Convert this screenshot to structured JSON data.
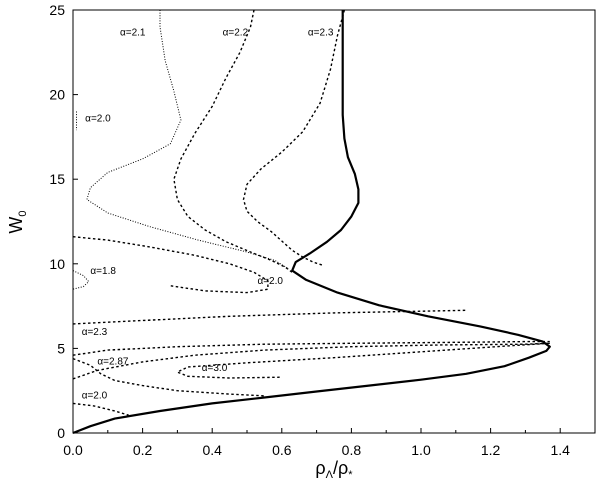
{
  "chart_data": {
    "type": "line",
    "title": "",
    "xlabel": "ρΛ/ρ*",
    "xlabel_parts": {
      "base1": "ρ",
      "sub1": "Λ",
      "slash": "/",
      "base2": "ρ",
      "sub2": "*"
    },
    "ylabel": "W0",
    "ylabel_parts": {
      "base": "W",
      "sub": "0"
    },
    "xlim": [
      0.0,
      1.5
    ],
    "ylim": [
      0,
      25
    ],
    "xticks": [
      0.0,
      0.2,
      0.4,
      0.6,
      0.8,
      1.0,
      1.2,
      1.4
    ],
    "xtick_labels": [
      "0.0",
      "0.2",
      "0.4",
      "0.6",
      "0.8",
      "1.0",
      "1.2",
      "1.4"
    ],
    "yticks": [
      0,
      5,
      10,
      15,
      20,
      25
    ],
    "ytick_labels": [
      "0",
      "5",
      "10",
      "15",
      "20",
      "25"
    ],
    "grid": false,
    "series": [
      {
        "style": "solid",
        "points": [
          [
            0.0,
            0.0
          ],
          [
            0.05,
            0.4
          ],
          [
            0.12,
            0.85
          ],
          [
            0.25,
            1.3
          ],
          [
            0.4,
            1.75
          ],
          [
            0.55,
            2.1
          ],
          [
            0.7,
            2.45
          ],
          [
            0.85,
            2.8
          ],
          [
            1.0,
            3.15
          ],
          [
            1.13,
            3.5
          ],
          [
            1.24,
            3.95
          ],
          [
            1.31,
            4.45
          ],
          [
            1.36,
            4.85
          ],
          [
            1.37,
            5.1
          ],
          [
            1.35,
            5.4
          ],
          [
            1.28,
            5.8
          ],
          [
            1.17,
            6.3
          ],
          [
            1.02,
            6.9
          ],
          [
            0.88,
            7.55
          ],
          [
            0.76,
            8.3
          ],
          [
            0.67,
            9.05
          ],
          [
            0.63,
            9.6
          ],
          [
            0.64,
            10.1
          ],
          [
            0.68,
            10.6
          ],
          [
            0.73,
            11.3
          ],
          [
            0.77,
            12.0
          ],
          [
            0.8,
            12.8
          ],
          [
            0.82,
            13.6
          ],
          [
            0.82,
            14.4
          ],
          [
            0.81,
            15.3
          ],
          [
            0.79,
            16.3
          ],
          [
            0.78,
            17.4
          ],
          [
            0.775,
            18.8
          ],
          [
            0.775,
            20.5
          ],
          [
            0.775,
            22.5
          ],
          [
            0.775,
            25.0
          ]
        ]
      },
      {
        "style": "dash",
        "points": [
          [
            0.78,
            25.0
          ],
          [
            0.76,
            23.5
          ],
          [
            0.74,
            21.5
          ],
          [
            0.71,
            19.5
          ],
          [
            0.66,
            17.8
          ],
          [
            0.6,
            16.6
          ],
          [
            0.54,
            15.6
          ],
          [
            0.5,
            14.7
          ],
          [
            0.49,
            13.8
          ],
          [
            0.5,
            13.1
          ],
          [
            0.53,
            12.5
          ],
          [
            0.57,
            11.9
          ],
          [
            0.6,
            11.35
          ],
          [
            0.63,
            10.8
          ],
          [
            0.66,
            10.4
          ],
          [
            0.69,
            10.1
          ],
          [
            0.72,
            9.9
          ]
        ]
      },
      {
        "style": "dash",
        "points": [
          [
            0.52,
            25.0
          ],
          [
            0.51,
            24.0
          ],
          [
            0.48,
            22.5
          ],
          [
            0.44,
            21.0
          ],
          [
            0.4,
            19.3
          ],
          [
            0.35,
            17.7
          ],
          [
            0.31,
            16.2
          ],
          [
            0.29,
            15.0
          ],
          [
            0.3,
            13.8
          ],
          [
            0.33,
            12.8
          ],
          [
            0.38,
            12.0
          ],
          [
            0.44,
            11.3
          ],
          [
            0.51,
            10.7
          ],
          [
            0.57,
            10.2
          ],
          [
            0.61,
            9.8
          ],
          [
            0.63,
            9.5
          ]
        ]
      },
      {
        "style": "dot",
        "points": [
          [
            0.25,
            25.0
          ],
          [
            0.25,
            24.0
          ],
          [
            0.265,
            22.0
          ],
          [
            0.29,
            20.2
          ],
          [
            0.31,
            18.5
          ],
          [
            0.28,
            17.1
          ],
          [
            0.2,
            16.2
          ],
          [
            0.1,
            15.4
          ],
          [
            0.05,
            14.5
          ],
          [
            0.04,
            13.8
          ],
          [
            0.1,
            13.0
          ],
          [
            0.22,
            12.2
          ],
          [
            0.36,
            11.4
          ],
          [
            0.5,
            10.7
          ],
          [
            0.58,
            10.2
          ],
          [
            0.62,
            9.7
          ]
        ]
      },
      {
        "style": "dash",
        "points": [
          [
            0.0,
            11.6
          ],
          [
            0.1,
            11.4
          ],
          [
            0.22,
            11.0
          ],
          [
            0.35,
            10.5
          ],
          [
            0.45,
            10.0
          ],
          [
            0.52,
            9.5
          ],
          [
            0.56,
            9.0
          ],
          [
            0.56,
            8.5
          ],
          [
            0.5,
            8.3
          ],
          [
            0.38,
            8.4
          ],
          [
            0.28,
            8.7
          ]
        ]
      },
      {
        "style": "dot",
        "points": [
          [
            0.0,
            9.6
          ],
          [
            0.03,
            9.3
          ],
          [
            0.045,
            8.95
          ],
          [
            0.03,
            8.65
          ],
          [
            0.0,
            8.5
          ]
        ]
      },
      {
        "style": "dash",
        "points": [
          [
            0.0,
            6.45
          ],
          [
            0.2,
            6.65
          ],
          [
            0.45,
            6.9
          ],
          [
            0.75,
            7.1
          ],
          [
            1.0,
            7.2
          ],
          [
            1.13,
            7.25
          ]
        ]
      },
      {
        "style": "dash",
        "points": [
          [
            0.0,
            3.2
          ],
          [
            0.07,
            3.7
          ],
          [
            0.2,
            4.2
          ],
          [
            0.35,
            4.6
          ],
          [
            0.55,
            4.9
          ],
          [
            0.8,
            5.1
          ],
          [
            1.05,
            5.2
          ],
          [
            1.3,
            5.25
          ],
          [
            1.37,
            5.3
          ]
        ]
      },
      {
        "style": "dash",
        "points": [
          [
            0.0,
            4.6
          ],
          [
            0.1,
            4.9
          ],
          [
            0.3,
            5.1
          ],
          [
            0.55,
            5.25
          ],
          [
            0.8,
            5.3
          ],
          [
            1.05,
            5.35
          ],
          [
            1.3,
            5.4
          ],
          [
            1.37,
            5.4
          ]
        ]
      },
      {
        "style": "dash",
        "points": [
          [
            1.37,
            5.3
          ],
          [
            1.25,
            5.15
          ],
          [
            1.0,
            4.8
          ],
          [
            0.75,
            4.45
          ],
          [
            0.5,
            4.15
          ],
          [
            0.33,
            3.9
          ],
          [
            0.3,
            3.6
          ],
          [
            0.33,
            3.35
          ],
          [
            0.45,
            3.25
          ],
          [
            0.6,
            3.3
          ]
        ]
      },
      {
        "style": "dash",
        "points": [
          [
            0.0,
            4.4
          ],
          [
            0.05,
            4.0
          ],
          [
            0.08,
            3.5
          ],
          [
            0.12,
            3.1
          ],
          [
            0.2,
            2.8
          ],
          [
            0.3,
            2.5
          ],
          [
            0.45,
            2.3
          ],
          [
            0.55,
            2.2
          ]
        ]
      },
      {
        "style": "dash",
        "points": [
          [
            0.0,
            1.75
          ],
          [
            0.06,
            1.6
          ],
          [
            0.12,
            1.3
          ],
          [
            0.16,
            1.05
          ]
        ]
      },
      {
        "style": "dot",
        "points": [
          [
            0.01,
            19.0
          ],
          [
            0.01,
            17.9
          ]
        ]
      }
    ],
    "annotations": [
      {
        "text": "α=2.1",
        "x": 0.135,
        "y": 23.5
      },
      {
        "text": "α=2.2",
        "x": 0.43,
        "y": 23.5
      },
      {
        "text": "α=2.3",
        "x": 0.675,
        "y": 23.5
      },
      {
        "text": "α=2.0",
        "x": 0.035,
        "y": 18.4
      },
      {
        "text": "α=1.8",
        "x": 0.05,
        "y": 9.4
      },
      {
        "text": "α=2.0",
        "x": 0.53,
        "y": 8.8
      },
      {
        "text": "α=2.3",
        "x": 0.025,
        "y": 5.8
      },
      {
        "text": "α=2.87",
        "x": 0.07,
        "y": 4.05
      },
      {
        "text": "α=3.0",
        "x": 0.37,
        "y": 3.65
      },
      {
        "text": "α=2.0",
        "x": 0.025,
        "y": 2.05
      }
    ]
  }
}
